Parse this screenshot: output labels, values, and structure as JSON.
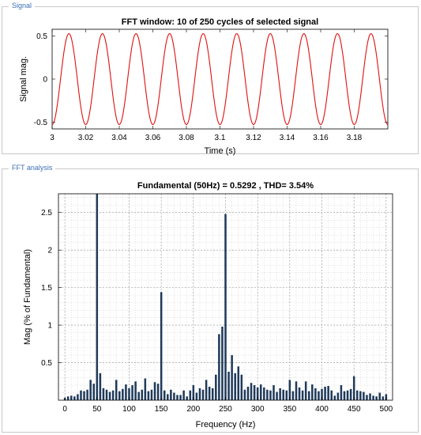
{
  "panels": {
    "signal_label": "Signal",
    "fft_label": "FFT analysis"
  },
  "colors": {
    "signal_line": "#e01010",
    "bar_fill": "#1f3a5a",
    "grid": "#b8b8b8"
  },
  "chart_data": [
    {
      "type": "line",
      "title": "FFT window: 10 of 250 cycles of selected signal",
      "xlabel": "Time (s)",
      "ylabel": "Signal mag.",
      "xlim": [
        3.0,
        3.2
      ],
      "ylim": [
        -0.58,
        0.58
      ],
      "xticks": [
        3,
        3.02,
        3.04,
        3.06,
        3.08,
        3.1,
        3.12,
        3.14,
        3.16,
        3.18
      ],
      "xtick_labels": [
        "3",
        "3.02",
        "3.04",
        "3.06",
        "3.08",
        "3.1",
        "3.12",
        "3.14",
        "3.16",
        "3.18"
      ],
      "yticks": [
        -0.5,
        0,
        0.5
      ],
      "ytick_labels": [
        "-0.5",
        "0",
        "0.5"
      ],
      "series": [
        {
          "frequency_hz": 50,
          "amplitude": 0.5292,
          "x_start": 3.0,
          "x_end": 3.2
        }
      ],
      "grid": false
    },
    {
      "type": "bar",
      "title": "Fundamental (50Hz) = 0.5292 , THD= 3.54%",
      "xlabel": "Frequency (Hz)",
      "ylabel": "Mag (% of Fundamental)",
      "xlim": [
        -10,
        510
      ],
      "ylim": [
        0,
        2.75
      ],
      "xticks": [
        0,
        50,
        100,
        150,
        200,
        250,
        300,
        350,
        400,
        450,
        500
      ],
      "xtick_labels": [
        "0",
        "50",
        "100",
        "150",
        "200",
        "250",
        "300",
        "350",
        "400",
        "450",
        "500"
      ],
      "yticks": [
        0.5,
        1,
        1.5,
        2,
        2.5
      ],
      "ytick_labels": [
        "0.5",
        "1",
        "1.5",
        "2",
        "2.5"
      ],
      "grid": true,
      "x": [
        0,
        5,
        10,
        15,
        20,
        25,
        30,
        35,
        40,
        45,
        50,
        55,
        60,
        65,
        70,
        75,
        80,
        85,
        90,
        95,
        100,
        105,
        110,
        115,
        120,
        125,
        130,
        135,
        140,
        145,
        150,
        155,
        160,
        165,
        170,
        175,
        180,
        185,
        190,
        195,
        200,
        205,
        210,
        215,
        220,
        225,
        230,
        235,
        240,
        245,
        250,
        255,
        260,
        265,
        270,
        275,
        280,
        285,
        290,
        295,
        300,
        305,
        310,
        315,
        320,
        325,
        330,
        335,
        340,
        345,
        350,
        355,
        360,
        365,
        370,
        375,
        380,
        385,
        390,
        395,
        400,
        405,
        410,
        415,
        420,
        425,
        430,
        435,
        440,
        445,
        450,
        455,
        460,
        465,
        470,
        475,
        480,
        485,
        490,
        495,
        500
      ],
      "values": [
        0.03,
        0.05,
        0.06,
        0.05,
        0.08,
        0.13,
        0.12,
        0.14,
        0.27,
        0.22,
        2.75,
        0.36,
        0.16,
        0.14,
        0.11,
        0.13,
        0.27,
        0.12,
        0.15,
        0.21,
        0.16,
        0.2,
        0.25,
        0.11,
        0.14,
        0.29,
        0.12,
        0.14,
        0.24,
        0.22,
        1.44,
        0.13,
        0.08,
        0.14,
        0.1,
        0.07,
        0.07,
        0.13,
        0.05,
        0.13,
        0.2,
        0.1,
        0.16,
        0.14,
        0.27,
        0.18,
        0.16,
        0.34,
        0.88,
        0.98,
        2.48,
        0.38,
        0.6,
        0.36,
        0.45,
        0.34,
        0.14,
        0.18,
        0.23,
        0.2,
        0.17,
        0.21,
        0.17,
        0.14,
        0.13,
        0.2,
        0.11,
        0.16,
        0.14,
        0.13,
        0.27,
        0.12,
        0.25,
        0.17,
        0.13,
        0.25,
        0.12,
        0.21,
        0.16,
        0.12,
        0.15,
        0.18,
        0.19,
        0.13,
        0.06,
        0.1,
        0.2,
        0.12,
        0.13,
        0.15,
        0.32,
        0.13,
        0.12,
        0.11,
        0.07,
        0.09,
        0.06,
        0.05,
        0.1,
        0.05,
        0.08
      ]
    }
  ]
}
